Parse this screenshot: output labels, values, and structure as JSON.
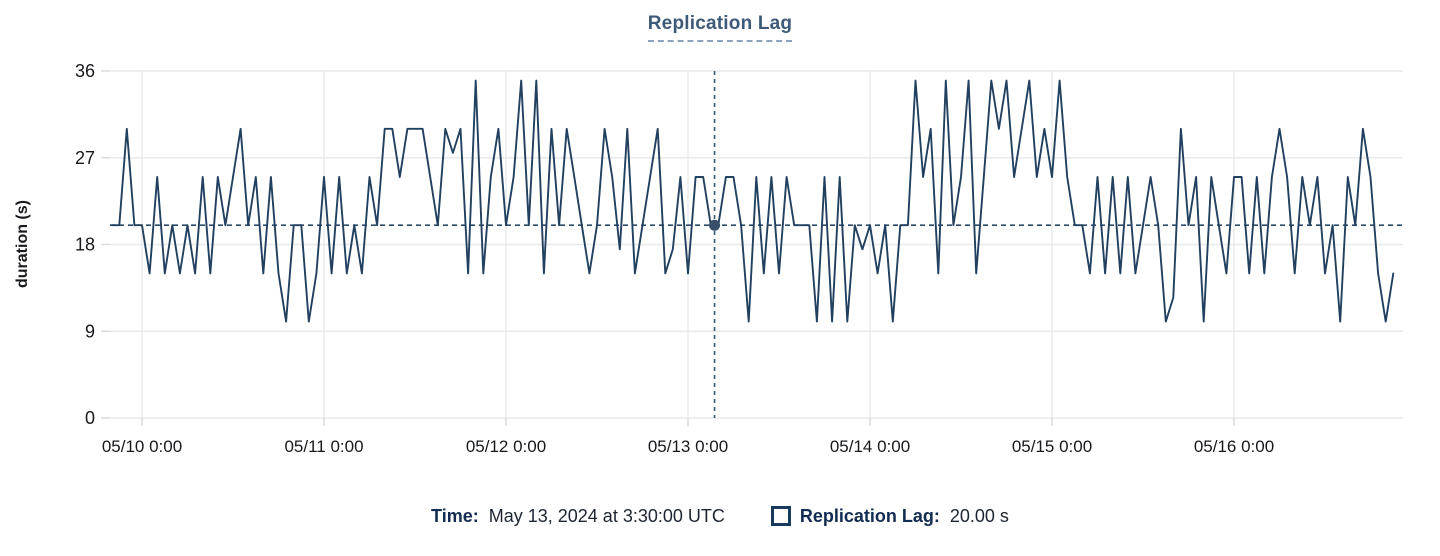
{
  "chart": {
    "title": "Replication Lag",
    "ylabel": "duration (s)",
    "footer": {
      "time_label": "Time:",
      "time_value": "May 13, 2024 at 3:30:00 UTC",
      "series_label": "Replication Lag:",
      "series_value": "20.00 s"
    }
  },
  "colors": {
    "series_line": "#22405f",
    "reference_line": "#2d4b6b",
    "selected_time_line": "#3f5f72",
    "selected_point": "#364e68",
    "gridline": "#e8e9ea",
    "tick": "#d7d9da",
    "title_text": "#3d5a78",
    "legend_label": "#132c52"
  },
  "chart_data": {
    "type": "line",
    "title": "Replication Lag",
    "xlabel": "",
    "ylabel": "duration (s)",
    "ylim": [
      0,
      36
    ],
    "yticks": [
      0,
      9,
      18,
      27,
      36
    ],
    "xtick_labels": [
      "05/10 0:00",
      "05/11 0:00",
      "05/12 0:00",
      "05/13 0:00",
      "05/14 0:00",
      "05/15 0:00",
      "05/16 0:00"
    ],
    "xtick_interval_hours": 24,
    "grid": true,
    "legend_position": "bottom",
    "reference_value": 20,
    "selected": {
      "time": "May 13, 2024 at 3:30:00 UTC",
      "hours_from_series_start": 79.5,
      "value": 20,
      "value_formatted": "20.00 s"
    },
    "series": [
      {
        "name": "Replication Lag",
        "unit": "s",
        "start": "2024-05-09 20:00 UTC",
        "start_offset_hours": -4,
        "interval_minutes": 60,
        "values": [
          20,
          20,
          30,
          20,
          20,
          15,
          25,
          15,
          20,
          15,
          20,
          15,
          25,
          15,
          25,
          20,
          25,
          30,
          20,
          25,
          15,
          25,
          15,
          10,
          20,
          20,
          10,
          15,
          25,
          15,
          25,
          15,
          20,
          15,
          25,
          20,
          30,
          30,
          25,
          30,
          30,
          30,
          25,
          20,
          30,
          27.5,
          30,
          15,
          35,
          15,
          25,
          30,
          20,
          25,
          35,
          20,
          35,
          15,
          30,
          20,
          30,
          25,
          20,
          15,
          20,
          30,
          25,
          17.5,
          30,
          15,
          20,
          25,
          30,
          15,
          17.5,
          25,
          15,
          25,
          25,
          20,
          20,
          25,
          25,
          20,
          10,
          25,
          15,
          25,
          15,
          25,
          20,
          20,
          20,
          10,
          25,
          10,
          25,
          10,
          20,
          17.5,
          20,
          15,
          20,
          10,
          20,
          20,
          35,
          25,
          30,
          15,
          35,
          20,
          25,
          35,
          15,
          25,
          35,
          30,
          35,
          25,
          30,
          35,
          25,
          30,
          25,
          35,
          25,
          20,
          20,
          15,
          25,
          15,
          25,
          15,
          25,
          15,
          20,
          25,
          20,
          10,
          12.5,
          30,
          20,
          25,
          10,
          25,
          20,
          15,
          25,
          25,
          15,
          25,
          15,
          25,
          30,
          25,
          15,
          25,
          20,
          25,
          15,
          20,
          10,
          25,
          20,
          30,
          25,
          15,
          10,
          15
        ]
      }
    ]
  }
}
